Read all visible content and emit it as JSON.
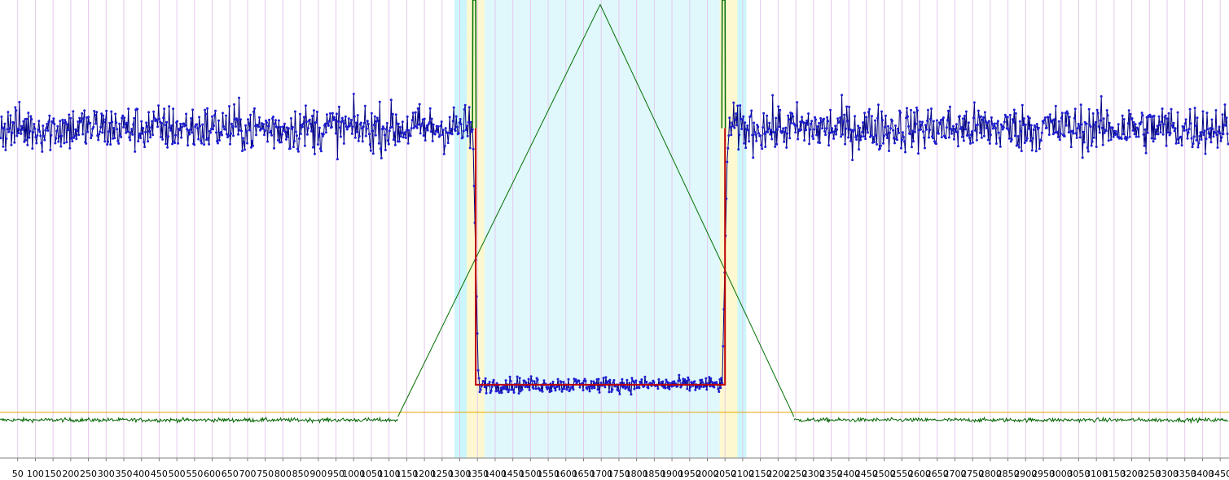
{
  "chart_data": {
    "type": "line",
    "title": "",
    "xlabel": "",
    "ylabel": "",
    "xlim": [
      0,
      3475
    ],
    "ylim": [
      0,
      1
    ],
    "grid": "vertical",
    "x_ticks": [
      50,
      100,
      150,
      200,
      250,
      300,
      350,
      400,
      450,
      500,
      550,
      600,
      650,
      700,
      750,
      800,
      850,
      900,
      950,
      1000,
      1050,
      1100,
      1150,
      1200,
      1250,
      1300,
      1350,
      1400,
      1450,
      1500,
      1550,
      1600,
      1650,
      1700,
      1750,
      1800,
      1850,
      1900,
      1950,
      2000,
      2050,
      2100,
      2150,
      2200,
      2250,
      2300,
      2350,
      2400,
      2450,
      2500,
      2550,
      2600,
      2650,
      2700,
      2750,
      2800,
      2850,
      2900,
      2950,
      3000,
      3050,
      3100,
      3150,
      3200,
      3250,
      3300,
      3350,
      3400,
      3450
    ],
    "x_tick_labels": [
      "50",
      "100",
      "150",
      "200",
      "250",
      "300",
      "350",
      "400",
      "450",
      "500",
      "550",
      "600",
      "650",
      "700",
      "750",
      "800",
      "850",
      "900",
      "950",
      "1000",
      "1050",
      "1100",
      "1150",
      "1200",
      "1250",
      "1300",
      "1350",
      "1400",
      "1450",
      "1500",
      "1550",
      "1600",
      "1650",
      "1700",
      "1750",
      "1800",
      "1850",
      "1900",
      "1950",
      "2000",
      "2050",
      "2100",
      "2150",
      "2200",
      "2250",
      "2300",
      "2350",
      "2400",
      "2450",
      "2500",
      "2550",
      "2600",
      "2650",
      "2700",
      "2750",
      "2800",
      "2850",
      "2900",
      "2950",
      "3000",
      "3050",
      "3100",
      "3150",
      "3200",
      "3250",
      "3300",
      "3350",
      "3400",
      "3450"
    ],
    "bands": [
      {
        "x0": 1285,
        "x1": 2110,
        "color": "#e0f8fc"
      },
      {
        "x0": 1285,
        "x1": 1320,
        "color": "#ccf6fb"
      },
      {
        "x0": 2085,
        "x1": 2110,
        "color": "#ccf6fb"
      },
      {
        "x0": 1320,
        "x1": 1370,
        "color": "#fdf8cf"
      },
      {
        "x0": 2035,
        "x1": 2085,
        "color": "#fdf8cf"
      }
    ],
    "threshold": {
      "y": 0.1,
      "color": "#e6a800"
    },
    "signal": {
      "color": "#000080",
      "marker_color": "#1e1ed2",
      "high_level": 0.72,
      "low_level": 0.16,
      "high_spread": 0.036,
      "low_spread": 0.012,
      "edge_fall": 1345,
      "edge_rise": 2050
    },
    "step_fit": {
      "color": "#c00000",
      "high": 0.72,
      "low": 0.16,
      "x_fall": 1345,
      "x_rise": 2050
    },
    "triangle": {
      "color": "#007000",
      "x_start": 1125,
      "x_peak": 1697,
      "x_end": 2245,
      "y_base": 0.09,
      "y_peak": 0.99
    },
    "baseline_noise": {
      "color": "#006400",
      "level": 0.083,
      "spread": 0.003
    },
    "spikes": [
      {
        "x0": 1336,
        "x1": 1346,
        "color": "#007000"
      },
      {
        "x0": 2041,
        "x1": 2051,
        "color": "#007000"
      }
    ]
  }
}
